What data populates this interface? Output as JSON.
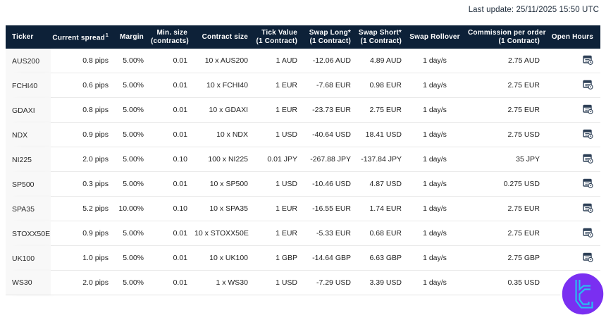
{
  "meta": {
    "last_update": "Last update: 25/11/2025 15:50 UTC"
  },
  "colors": {
    "header_bg": "#0d2138",
    "header_text": "#ffffff",
    "ticker_column_bg": "#f8f8f8",
    "row_border": "#e9e9e9",
    "body_text": "#1f1f1f",
    "icon_navy": "#2e4057",
    "logo_circle": "#7a2ff1",
    "logo_glyph": "#25c1f2"
  },
  "table": {
    "columns": [
      {
        "id": "ticker",
        "label": "Ticker",
        "align": "left"
      },
      {
        "id": "spread",
        "label": "Current spread",
        "sup": "1",
        "align": "right"
      },
      {
        "id": "margin",
        "label": "Margin",
        "align": "right"
      },
      {
        "id": "min_size",
        "label": "Min. size",
        "line2": "(contracts)",
        "align": "right"
      },
      {
        "id": "contract_size",
        "label": "Contract size",
        "align": "right"
      },
      {
        "id": "tick_value",
        "label": "Tick Value",
        "line2": "(1 Contract)",
        "align": "right"
      },
      {
        "id": "swap_long",
        "label": "Swap Long*",
        "line2": "(1 Contract)",
        "align": "right"
      },
      {
        "id": "swap_short",
        "label": "Swap Short*",
        "line2": "(1 Contract)",
        "align": "right"
      },
      {
        "id": "swap_rollover",
        "label": "Swap Rollover",
        "align": "center"
      },
      {
        "id": "commission",
        "label": "Commission per order",
        "line2": "(1 Contract)",
        "align": "right"
      },
      {
        "id": "open_hours",
        "label": "Open Hours",
        "align": "right",
        "icon": "calendar-clock-icon"
      }
    ],
    "rows": [
      {
        "ticker": "AUS200",
        "spread": "0.8 pips",
        "margin": "5.00%",
        "min_size": "0.01",
        "contract_size": "10 x AUS200",
        "tick_value": "1 AUD",
        "swap_long": "-12.06 AUD",
        "swap_short": "4.89 AUD",
        "swap_rollover": "1 day/s",
        "commission": "2.75 AUD"
      },
      {
        "ticker": "FCHI40",
        "spread": "0.6 pips",
        "margin": "5.00%",
        "min_size": "0.01",
        "contract_size": "10 x FCHI40",
        "tick_value": "1 EUR",
        "swap_long": "-7.68 EUR",
        "swap_short": "0.98 EUR",
        "swap_rollover": "1 day/s",
        "commission": "2.75 EUR"
      },
      {
        "ticker": "GDAXI",
        "spread": "0.8 pips",
        "margin": "5.00%",
        "min_size": "0.01",
        "contract_size": "10 x GDAXI",
        "tick_value": "1 EUR",
        "swap_long": "-23.73 EUR",
        "swap_short": "2.75 EUR",
        "swap_rollover": "1 day/s",
        "commission": "2.75 EUR"
      },
      {
        "ticker": "NDX",
        "spread": "0.9 pips",
        "margin": "5.00%",
        "min_size": "0.01",
        "contract_size": "10 x NDX",
        "tick_value": "1 USD",
        "swap_long": "-40.64 USD",
        "swap_short": "18.41 USD",
        "swap_rollover": "1 day/s",
        "commission": "2.75 USD"
      },
      {
        "ticker": "NI225",
        "spread": "2.0 pips",
        "margin": "5.00%",
        "min_size": "0.10",
        "contract_size": "100 x NI225",
        "tick_value": "0.01 JPY",
        "swap_long": "-267.88 JPY",
        "swap_short": "-137.84 JPY",
        "swap_rollover": "1 day/s",
        "commission": "35 JPY"
      },
      {
        "ticker": "SP500",
        "spread": "0.3 pips",
        "margin": "5.00%",
        "min_size": "0.01",
        "contract_size": "10 x SP500",
        "tick_value": "1 USD",
        "swap_long": "-10.46 USD",
        "swap_short": "4.87 USD",
        "swap_rollover": "1 day/s",
        "commission": "0.275 USD"
      },
      {
        "ticker": "SPA35",
        "spread": "5.2 pips",
        "margin": "10.00%",
        "min_size": "0.10",
        "contract_size": "10 x SPA35",
        "tick_value": "1 EUR",
        "swap_long": "-16.55 EUR",
        "swap_short": "1.74 EUR",
        "swap_rollover": "1 day/s",
        "commission": "2.75 EUR"
      },
      {
        "ticker": "STOXX50E",
        "spread": "0.9 pips",
        "margin": "5.00%",
        "min_size": "0.01",
        "contract_size": "10 x STOXX50E",
        "tick_value": "1 EUR",
        "swap_long": "-5.33 EUR",
        "swap_short": "0.68 EUR",
        "swap_rollover": "1 day/s",
        "commission": "2.75 EUR"
      },
      {
        "ticker": "UK100",
        "spread": "1.0 pips",
        "margin": "5.00%",
        "min_size": "0.01",
        "contract_size": "10 x UK100",
        "tick_value": "1 GBP",
        "swap_long": "-14.64 GBP",
        "swap_short": "6.63 GBP",
        "swap_rollover": "1 day/s",
        "commission": "2.75 GBP"
      },
      {
        "ticker": "WS30",
        "spread": "2.0 pips",
        "margin": "5.00%",
        "min_size": "0.01",
        "contract_size": "1 x WS30",
        "tick_value": "1 USD",
        "swap_long": "-7.29 USD",
        "swap_short": "3.39 USD",
        "swap_rollover": "1 day/s",
        "commission": "0.35 USD"
      }
    ]
  }
}
